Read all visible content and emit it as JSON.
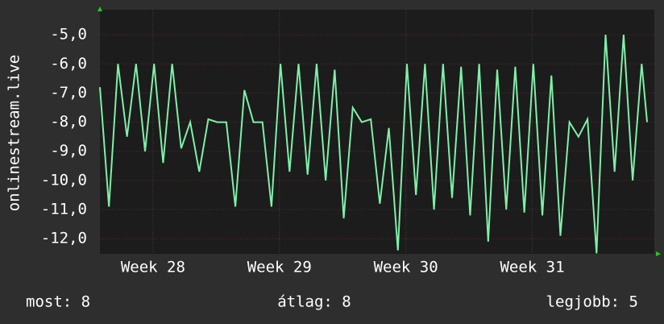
{
  "chart_data": {
    "type": "line",
    "y_label": "onlinestream.live",
    "xlim": [
      0,
      30.7
    ],
    "xticks": [
      {
        "value": 2.94,
        "label": "Week 28"
      },
      {
        "value": 9.94,
        "label": "Week 29"
      },
      {
        "value": 16.94,
        "label": "Week 30"
      },
      {
        "value": 23.94,
        "label": "Week 31"
      }
    ],
    "ylim": [
      -12.52,
      -4.14
    ],
    "yticks": [
      {
        "value": -5,
        "label": "-5,0"
      },
      {
        "value": -6,
        "label": "-6,0"
      },
      {
        "value": -7,
        "label": "-7,0"
      },
      {
        "value": -8,
        "label": "-8,0"
      },
      {
        "value": -9,
        "label": "-9,0"
      },
      {
        "value": -10,
        "label": "-10,0"
      },
      {
        "value": -11,
        "label": "-11,0"
      },
      {
        "value": -12,
        "label": "-12,0"
      }
    ],
    "grid": true,
    "series": [
      {
        "name": "onlinestream.live",
        "color": "#7ff0a8",
        "x": [
          0,
          0.5,
          1,
          1.5,
          2,
          2.5,
          3,
          3.5,
          4,
          4.5,
          5,
          5.5,
          6,
          6.5,
          7,
          7.5,
          8,
          8.5,
          9,
          9.5,
          10,
          10.5,
          11,
          11.5,
          12,
          12.5,
          13,
          13.5,
          14,
          14.5,
          15,
          15.5,
          16,
          16.5,
          17,
          17.5,
          18,
          18.5,
          19,
          19.5,
          20,
          20.5,
          21,
          21.5,
          22,
          22.5,
          23,
          23.5,
          24,
          24.5,
          25,
          25.5,
          26,
          26.5,
          27,
          27.5,
          28,
          28.5,
          29,
          29.5,
          30,
          30.3
        ],
        "values": [
          -6.8,
          -10.9,
          -6.0,
          -8.5,
          -6.0,
          -9.0,
          -6.0,
          -9.4,
          -6.0,
          -8.9,
          -8.0,
          -9.7,
          -7.9,
          -8.0,
          -8.0,
          -10.9,
          -6.9,
          -8.0,
          -8.0,
          -10.9,
          -6.0,
          -9.7,
          -6.0,
          -9.8,
          -6.0,
          -10.0,
          -6.2,
          -11.3,
          -7.5,
          -8.0,
          -7.9,
          -10.8,
          -8.2,
          -12.4,
          -6.0,
          -10.5,
          -6.0,
          -11.0,
          -6.0,
          -10.6,
          -6.1,
          -11.2,
          -6.0,
          -12.1,
          -6.2,
          -11.0,
          -6.1,
          -11.1,
          -6.0,
          -11.2,
          -6.4,
          -11.9,
          -8.0,
          -8.5,
          -7.9,
          -12.5,
          -5.0,
          -9.7,
          -5.0,
          -10.0,
          -6.0,
          -8.0
        ]
      }
    ],
    "footer": [
      "most: 8",
      "átlag: 8",
      "legjobb: 5"
    ]
  }
}
